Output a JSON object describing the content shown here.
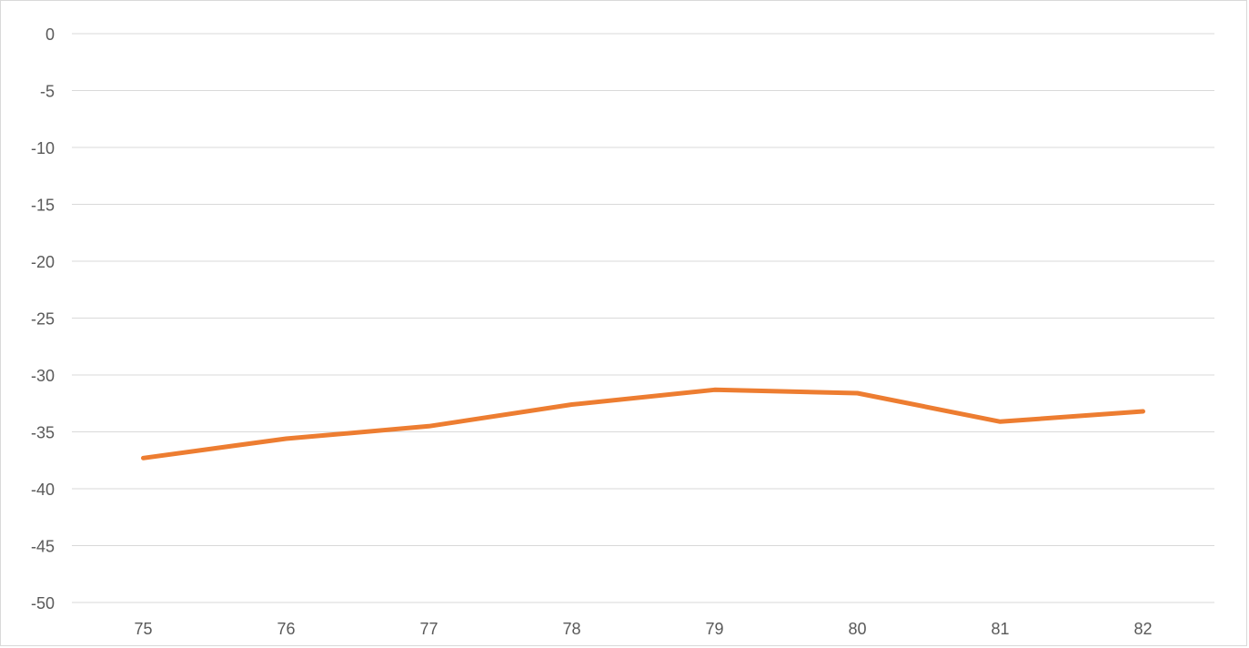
{
  "chart_data": {
    "type": "line",
    "x": [
      "75",
      "76",
      "77",
      "78",
      "79",
      "80",
      "81",
      "82"
    ],
    "series": [
      {
        "values": [
          -37.3,
          -35.6,
          -34.5,
          -32.6,
          -31.3,
          -31.6,
          -34.1,
          -33.2
        ],
        "color": "#ED7D31"
      }
    ],
    "ylim": [
      -50,
      0
    ],
    "yticks": [
      "0",
      "-5",
      "-10",
      "-15",
      "-20",
      "-25",
      "-30",
      "-35",
      "-40",
      "-45",
      "-50"
    ],
    "grid": true,
    "legend": "none"
  },
  "colors": {
    "gridline": "#d9d9d9",
    "tick_text": "#595959"
  }
}
